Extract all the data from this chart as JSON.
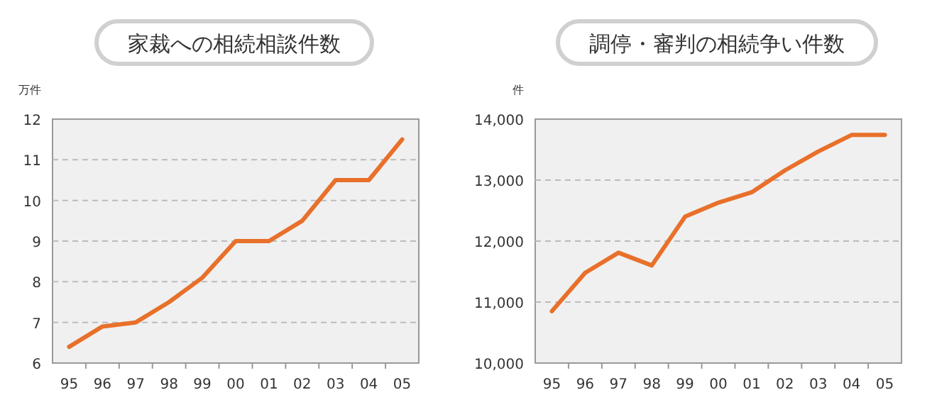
{
  "chart_data": [
    {
      "type": "line",
      "title": "家裁への相続相談件数",
      "ylabel": "万件",
      "categories": [
        "95",
        "96",
        "97",
        "98",
        "99",
        "00",
        "01",
        "02",
        "03",
        "04",
        "05"
      ],
      "values": [
        6.4,
        6.9,
        7.0,
        7.5,
        8.1,
        9.0,
        9.0,
        9.5,
        10.5,
        10.5,
        11.5
      ],
      "color": "#e8702a",
      "ylim": [
        6,
        12
      ],
      "yticks": [
        6,
        7,
        8,
        9,
        10,
        11,
        12
      ],
      "grid": "y"
    },
    {
      "type": "line",
      "title": "調停・審判の相続争い件数",
      "ylabel": "件",
      "categories": [
        "95",
        "96",
        "97",
        "98",
        "99",
        "00",
        "01",
        "02",
        "03",
        "04",
        "05"
      ],
      "values": [
        10850,
        11480,
        11810,
        11600,
        12400,
        12630,
        12800,
        13160,
        13470,
        13740,
        13740
      ],
      "color": "#e8702a",
      "ylim": [
        10000,
        14000
      ],
      "yticks": [
        {
          "value": 10000,
          "label": "10,000"
        },
        {
          "value": 11000,
          "label": "11,000"
        },
        {
          "value": 12000,
          "label": "12,000"
        },
        {
          "value": 13000,
          "label": "13,000"
        },
        {
          "value": 14000,
          "label": "14,000"
        }
      ],
      "grid": "y"
    }
  ]
}
